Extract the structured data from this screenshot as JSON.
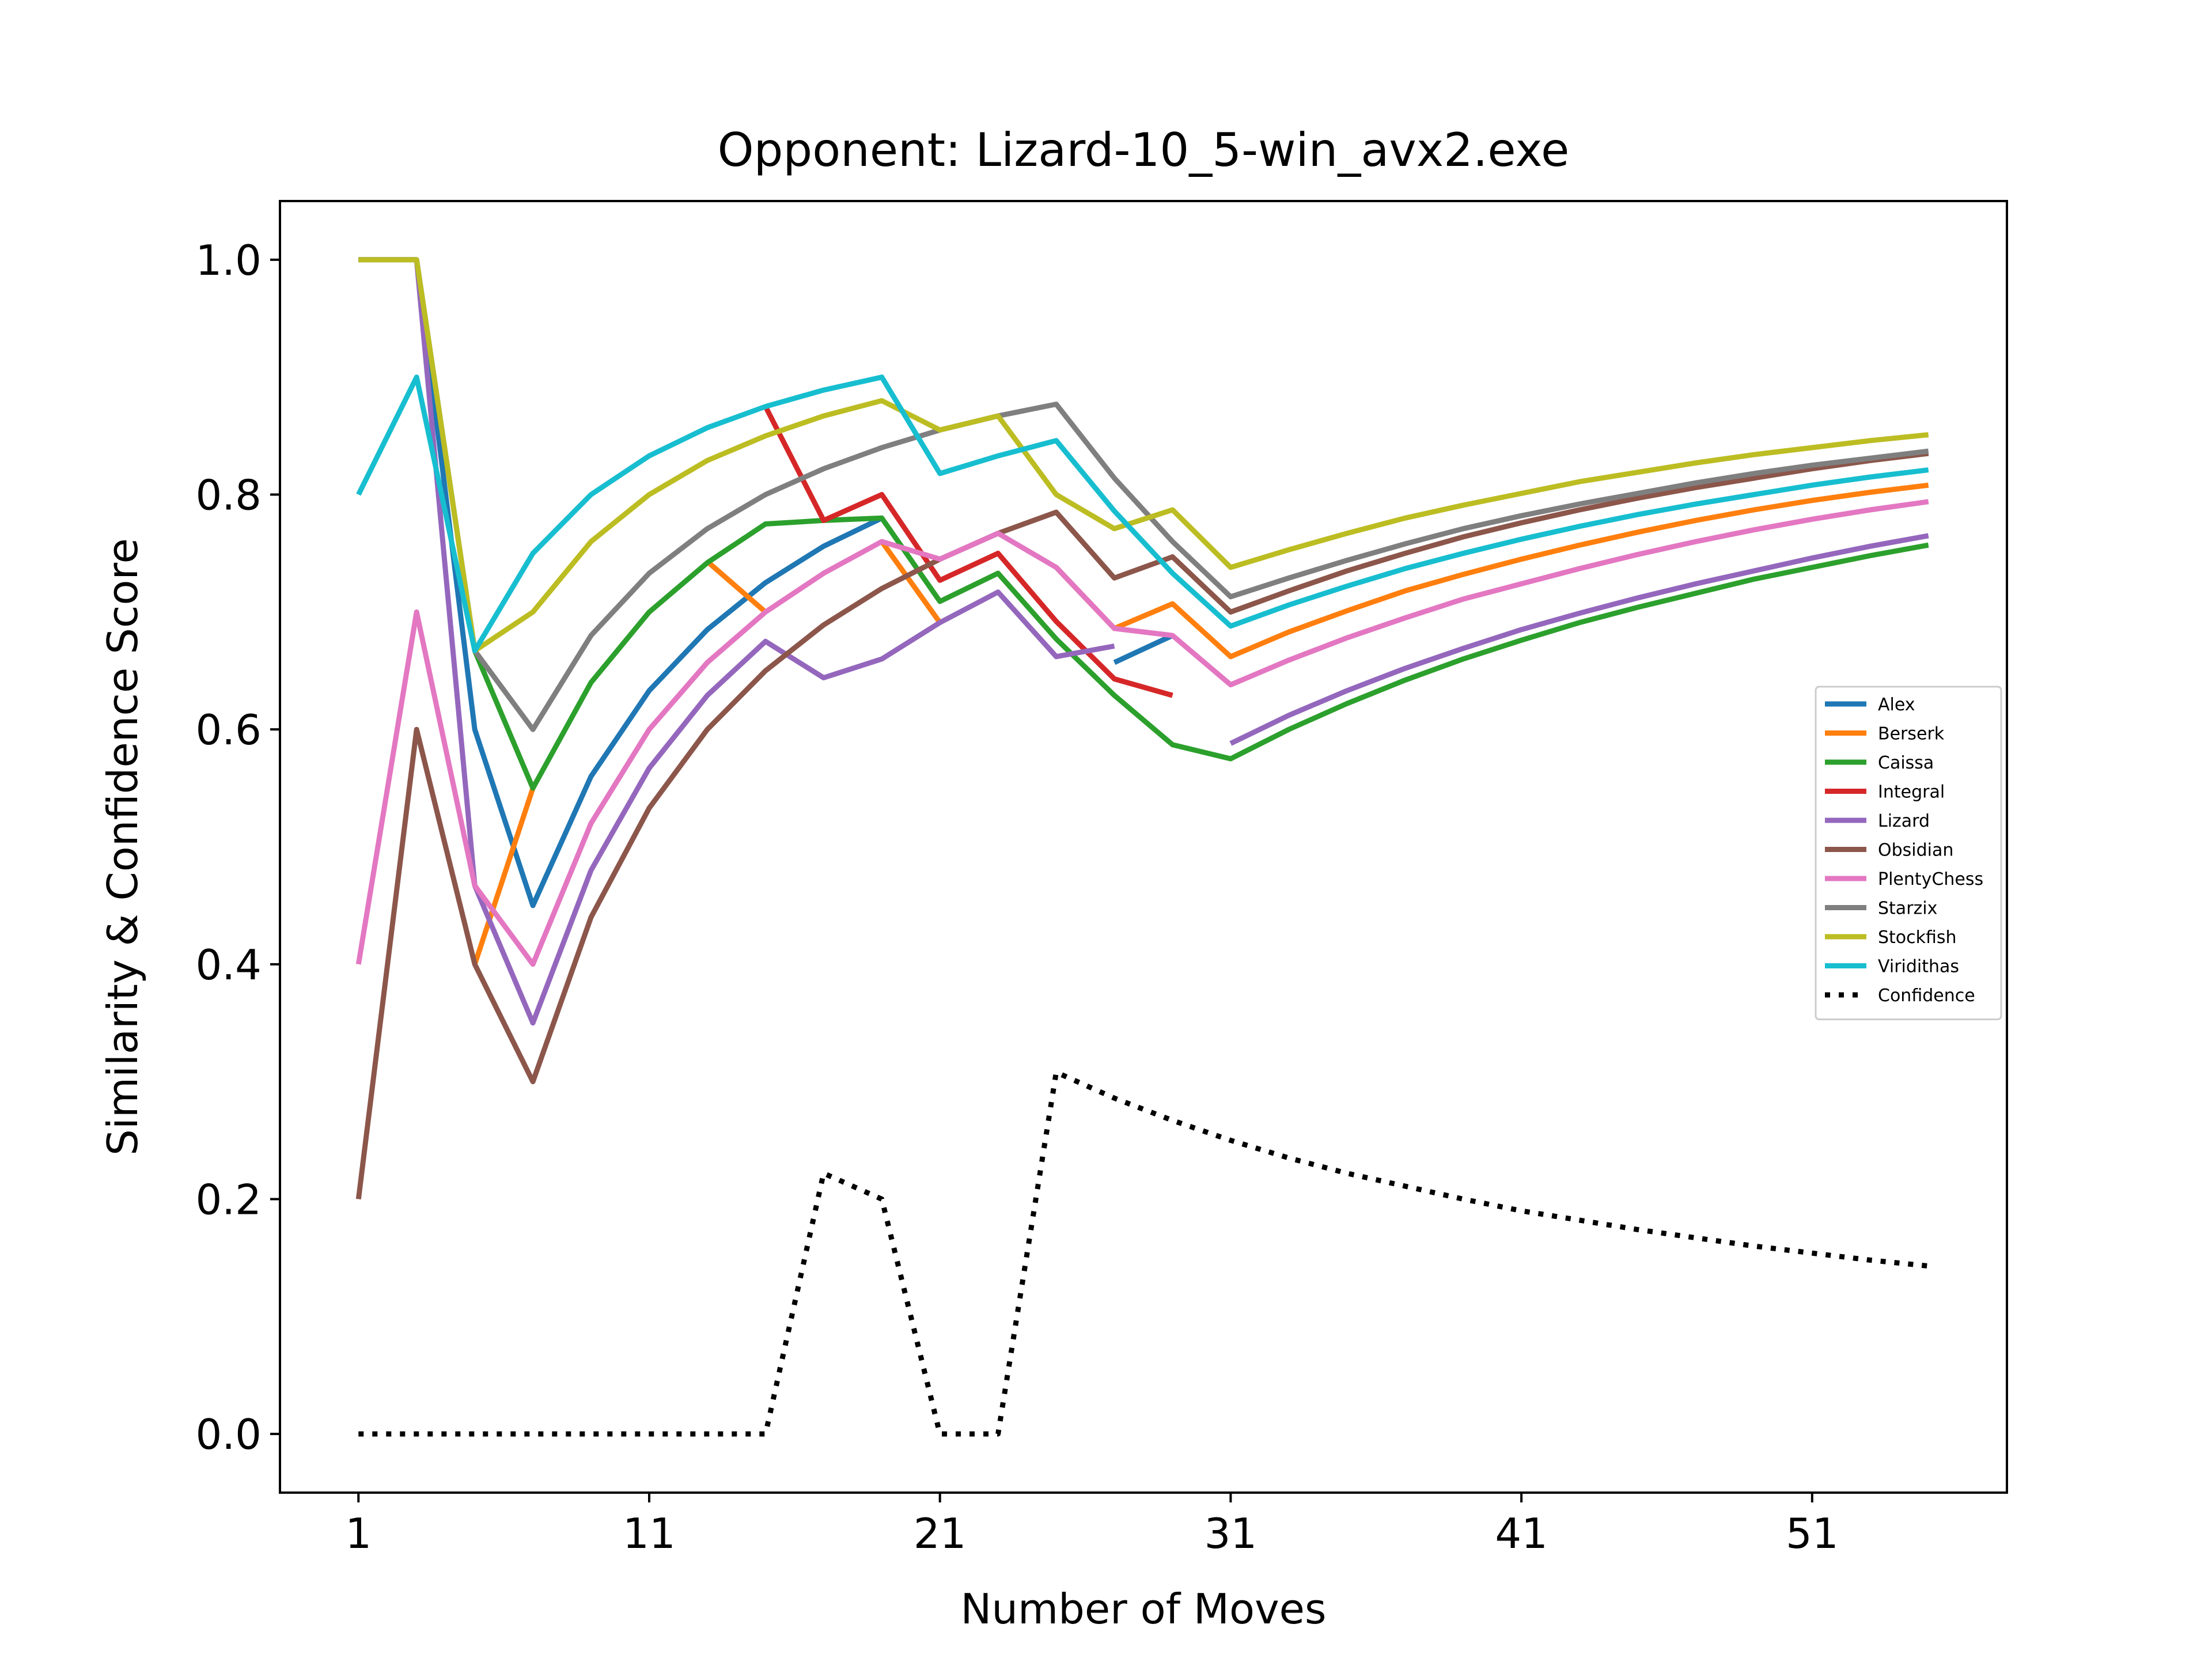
{
  "chart_data": {
    "type": "line",
    "title": "Opponent: Lizard-10_5-win_avx2.exe",
    "xlabel": "Number of Moves",
    "ylabel": "Similarity & Confidence Score",
    "xlim": [
      -1.7,
      57.7
    ],
    "ylim": [
      -0.05,
      1.05
    ],
    "xticks": [
      1,
      11,
      21,
      31,
      41,
      51
    ],
    "yticks": [
      0.0,
      0.2,
      0.4,
      0.6,
      0.8,
      1.0
    ],
    "xtick_labels": [
      "1",
      "11",
      "21",
      "31",
      "41",
      "51"
    ],
    "ytick_labels": [
      "0.0",
      "0.2",
      "0.4",
      "0.6",
      "0.8",
      "1.0"
    ],
    "grid": false,
    "legend_position": "center right",
    "x": [
      1,
      3,
      5,
      7,
      9,
      11,
      13,
      15,
      17,
      19,
      21,
      23,
      25,
      27,
      29,
      31,
      33,
      35,
      37,
      39,
      41,
      43,
      45,
      47,
      49,
      51,
      53,
      55
    ],
    "series": [
      {
        "name": "Alex",
        "color": "#1f77b4",
        "style": "solid",
        "values": [
          1.0,
          1.0,
          0.6,
          0.45,
          0.56,
          0.633,
          0.685,
          0.725,
          0.756,
          0.78,
          null,
          null,
          null,
          0.657,
          0.68,
          null,
          null,
          null,
          null,
          null,
          null,
          null,
          null,
          null,
          null,
          null,
          null,
          null
        ]
      },
      {
        "name": "Berserk",
        "color": "#ff7f0e",
        "style": "solid",
        "values": [
          null,
          null,
          0.4,
          0.55,
          null,
          null,
          0.743,
          0.7,
          null,
          0.76,
          0.691,
          null,
          0.738,
          0.686,
          0.707,
          0.662,
          0.683,
          0.701,
          0.718,
          0.732,
          0.745,
          0.757,
          0.768,
          0.778,
          0.787,
          0.795,
          0.802,
          0.808
        ]
      },
      {
        "name": "Caissa",
        "color": "#2ca02c",
        "style": "solid",
        "values": [
          1.0,
          1.0,
          0.667,
          0.55,
          0.64,
          0.7,
          0.742,
          0.775,
          0.778,
          0.78,
          0.709,
          0.733,
          0.677,
          0.629,
          0.587,
          0.575,
          0.6,
          0.622,
          0.642,
          0.66,
          0.676,
          0.691,
          0.704,
          0.716,
          0.728,
          0.738,
          0.748,
          0.757
        ]
      },
      {
        "name": "Integral",
        "color": "#d62728",
        "style": "solid",
        "values": [
          null,
          null,
          null,
          null,
          null,
          null,
          null,
          0.875,
          0.778,
          0.8,
          0.727,
          0.75,
          0.692,
          0.643,
          0.629,
          null,
          null,
          null,
          null,
          null,
          null,
          null,
          null,
          null,
          null,
          null,
          null,
          null
        ]
      },
      {
        "name": "Lizard",
        "color": "#9467bd",
        "style": "solid",
        "values": [
          1.0,
          1.0,
          0.467,
          0.35,
          0.48,
          0.567,
          0.629,
          0.675,
          0.644,
          0.66,
          0.691,
          0.717,
          0.662,
          0.671,
          null,
          0.588,
          0.612,
          0.633,
          0.652,
          0.669,
          0.685,
          0.699,
          0.712,
          0.724,
          0.735,
          0.746,
          0.756,
          0.765
        ]
      },
      {
        "name": "Obsidian",
        "color": "#8c564b",
        "style": "solid",
        "values": [
          0.2,
          0.6,
          0.4,
          0.3,
          0.44,
          0.533,
          0.6,
          0.65,
          0.689,
          0.72,
          0.745,
          0.767,
          0.785,
          0.729,
          0.747,
          0.7,
          0.718,
          0.735,
          0.75,
          0.764,
          0.776,
          0.787,
          0.797,
          0.806,
          0.814,
          0.822,
          0.829,
          0.835
        ]
      },
      {
        "name": "PlentyChess",
        "color": "#e377c2",
        "style": "solid",
        "values": [
          0.4,
          0.7,
          0.467,
          0.4,
          0.52,
          0.6,
          0.657,
          0.7,
          0.733,
          0.76,
          0.745,
          0.767,
          0.738,
          0.686,
          0.68,
          0.638,
          0.659,
          0.678,
          0.695,
          0.711,
          0.724,
          0.737,
          0.749,
          0.76,
          0.77,
          0.779,
          0.787,
          0.794
        ]
      },
      {
        "name": "Starzix",
        "color": "#7f7f7f",
        "style": "solid",
        "values": [
          1.0,
          1.0,
          0.667,
          0.6,
          0.68,
          0.733,
          0.771,
          0.8,
          0.822,
          0.84,
          0.855,
          0.867,
          0.877,
          0.814,
          0.76,
          0.713,
          0.729,
          0.744,
          0.758,
          0.771,
          0.782,
          0.792,
          0.801,
          0.81,
          0.818,
          0.825,
          0.831,
          0.837
        ]
      },
      {
        "name": "Stockfish",
        "color": "#bcbd22",
        "style": "solid",
        "values": [
          1.0,
          1.0,
          0.667,
          0.7,
          0.76,
          0.8,
          0.829,
          0.85,
          0.867,
          0.88,
          0.855,
          0.867,
          0.8,
          0.771,
          0.787,
          0.738,
          0.753,
          0.767,
          0.78,
          0.791,
          0.801,
          0.811,
          0.819,
          0.827,
          0.834,
          0.84,
          0.846,
          0.851
        ]
      },
      {
        "name": "Viridithas",
        "color": "#17becf",
        "style": "solid",
        "values": [
          0.8,
          0.9,
          0.667,
          0.75,
          0.8,
          0.833,
          0.857,
          0.875,
          0.889,
          0.9,
          0.818,
          0.833,
          0.846,
          0.786,
          0.733,
          0.688,
          0.706,
          0.722,
          0.737,
          0.75,
          0.762,
          0.773,
          0.783,
          0.792,
          0.8,
          0.808,
          0.815,
          0.821
        ]
      },
      {
        "name": "Confidence",
        "color": "#000000",
        "style": "dotted",
        "values": [
          0.0,
          0.0,
          0.0,
          0.0,
          0.0,
          0.0,
          0.0,
          0.0,
          0.222,
          0.2,
          0.0,
          0.0,
          0.308,
          0.286,
          0.267,
          0.25,
          0.235,
          0.222,
          0.211,
          0.2,
          0.19,
          0.182,
          0.174,
          0.167,
          0.16,
          0.154,
          0.148,
          0.143
        ]
      }
    ]
  }
}
